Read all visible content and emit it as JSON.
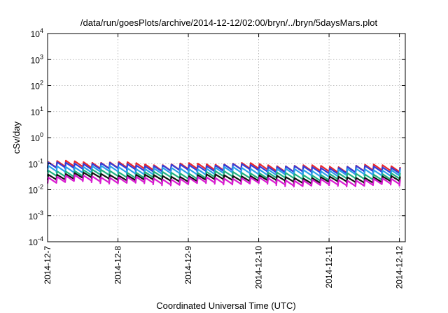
{
  "chart_data": {
    "type": "line",
    "title": "/data/run/goesPlots/archive/2014-12-12/02:00/bryn/../bryn/5daysMars.plot",
    "xlabel": "Coordinated Universal Time (UTC)",
    "ylabel": "cSv/day",
    "yscale": "log",
    "ylim": [
      0.0001,
      10000
    ],
    "yticks": [
      {
        "base": "10",
        "exp": "4",
        "value": 10000
      },
      {
        "base": "10",
        "exp": "3",
        "value": 1000
      },
      {
        "base": "10",
        "exp": "2",
        "value": 100
      },
      {
        "base": "10",
        "exp": "1",
        "value": 10
      },
      {
        "base": "10",
        "exp": "0",
        "value": 1
      },
      {
        "base": "10",
        "exp": "-1",
        "value": 0.1
      },
      {
        "base": "10",
        "exp": "-2",
        "value": 0.01
      },
      {
        "base": "10",
        "exp": "-3",
        "value": 0.001
      },
      {
        "base": "10",
        "exp": "-4",
        "value": 0.0001
      }
    ],
    "xlim": [
      "2014-12-07",
      "2014-12-12T02:00"
    ],
    "xticks": [
      "2014-12-7",
      "2014-12-8",
      "2014-12-9",
      "2014-12-10",
      "2014-12-11",
      "2014-12-12"
    ],
    "grid": true,
    "series": [
      {
        "color": "#e8262c",
        "start": 0.075,
        "peak": 0.095,
        "valley": 0.055,
        "end": 0.05
      },
      {
        "color": "#2f3fdc",
        "start": 0.068,
        "peak": 0.085,
        "valley": 0.05,
        "end": 0.046
      },
      {
        "color": "#2aa0e8",
        "start": 0.05,
        "peak": 0.065,
        "valley": 0.038,
        "end": 0.036
      },
      {
        "color": "#20b080",
        "start": 0.035,
        "peak": 0.045,
        "valley": 0.027,
        "end": 0.025
      },
      {
        "color": "#111111",
        "start": 0.027,
        "peak": 0.034,
        "valley": 0.021,
        "end": 0.019
      },
      {
        "color": "#d81ad0",
        "start": 0.021,
        "peak": 0.027,
        "valley": 0.016,
        "end": 0.015
      }
    ],
    "pattern": {
      "cycle_hours": 3,
      "note_values_approximate": true
    }
  }
}
